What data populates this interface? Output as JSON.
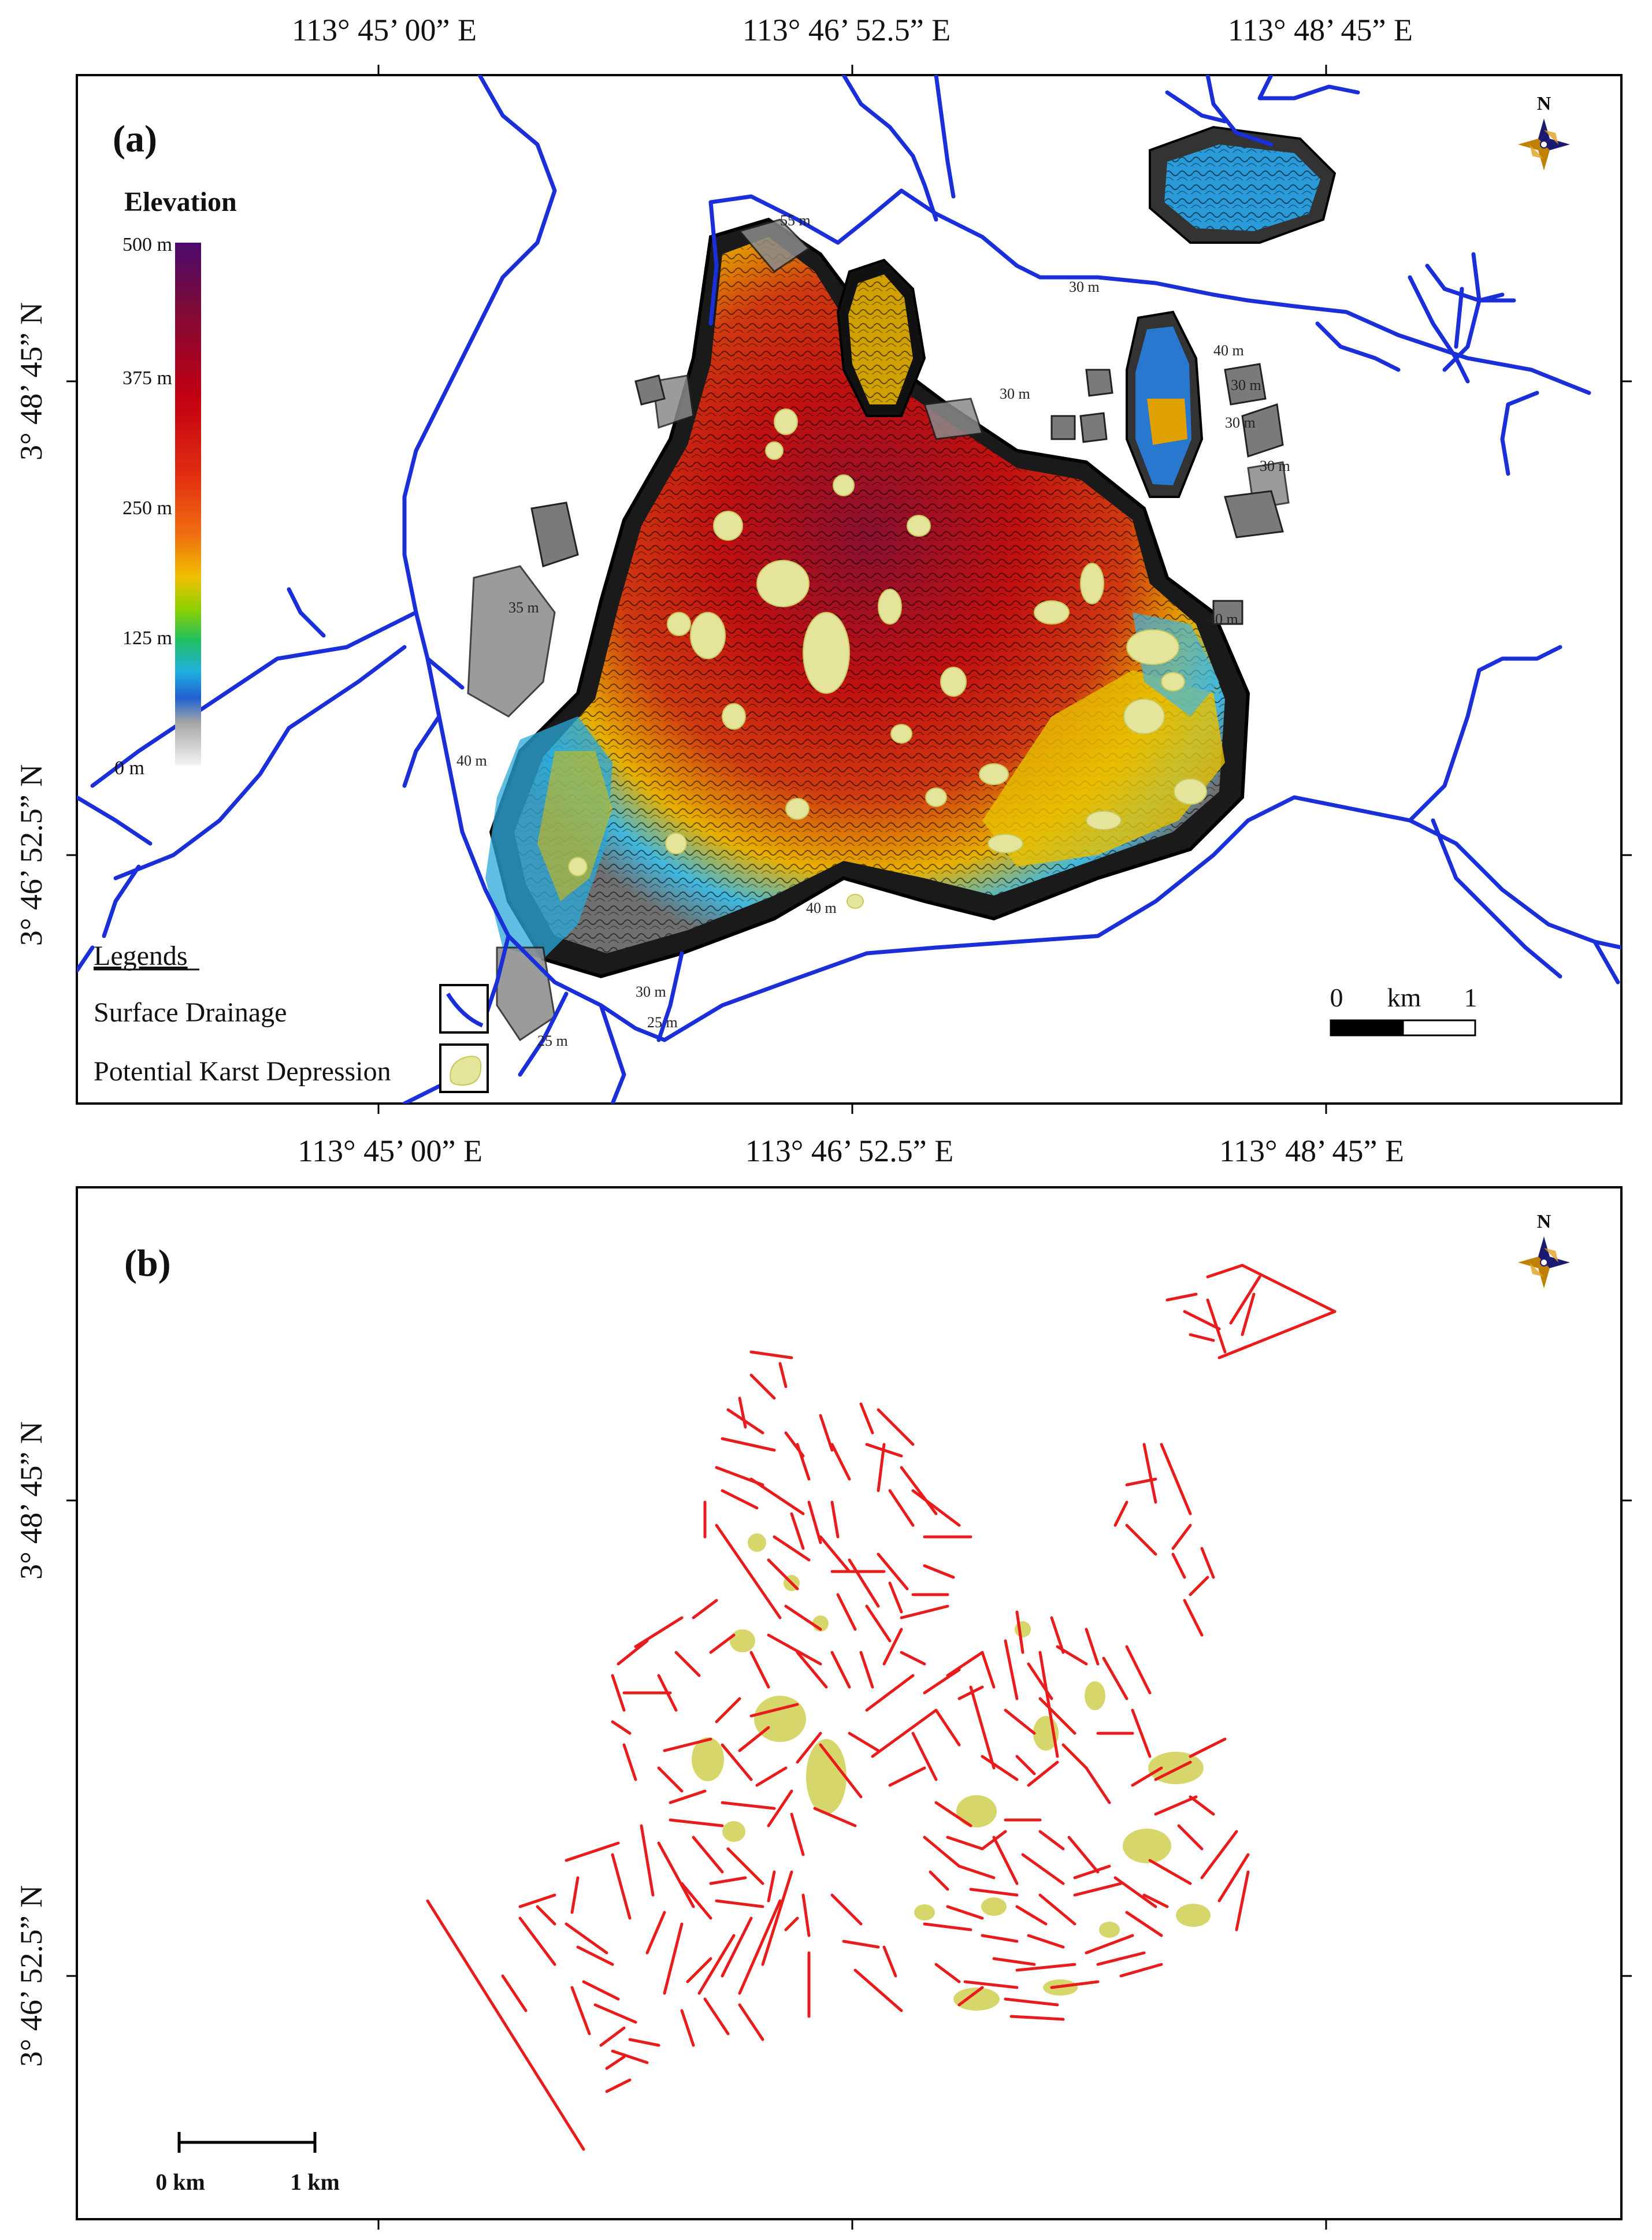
{
  "panel_a": {
    "label": "(a)",
    "top_longitude_labels": [
      "113° 45’ 00” E",
      "113° 46’ 52.5” E",
      "113° 48’ 45” E"
    ],
    "bottom_longitude_labels": [
      "113° 45’ 00” E",
      "113° 46’ 52.5” E",
      "113° 48’ 45” E"
    ],
    "latitude_labels": [
      "3° 48’ 45” N",
      "3° 46’ 52.5” N"
    ],
    "north_arrow": {
      "icon": "compass-rose-icon",
      "label": "N"
    },
    "elevation_legend": {
      "title": "Elevation",
      "ticks": [
        "500 m",
        "375 m",
        "250 m",
        "125 m",
        "0 m"
      ],
      "colors": [
        "#4b0a6e",
        "#7a0a3a",
        "#c40010",
        "#e23010",
        "#f07010",
        "#f0c000",
        "#8ed000",
        "#20c060",
        "#20b0e0",
        "#2060d0",
        "#c8c8c8",
        "#f4f4f4"
      ]
    },
    "legends": {
      "heading": "Legends",
      "items": [
        {
          "label": "Surface Drainage",
          "icon": "drainage-line-icon",
          "color": "#1a2fd8"
        },
        {
          "label": "Potential Karst Depression",
          "icon": "karst-depression-icon",
          "color": "#e4e49a"
        }
      ]
    },
    "scale_bar": {
      "label_0": "0",
      "unit": "km",
      "label_1": "1"
    },
    "contour_labels": [
      "55 m",
      "30 m",
      "40 m",
      "30 m",
      "30 m",
      "30 m",
      "35 m",
      "40 m",
      "30 m",
      "25 m",
      "40 m",
      "30 m",
      "25 m",
      "40 m"
    ]
  },
  "panel_b": {
    "label": "(b)",
    "bottom_longitude_labels": [
      "113° 45’ 00” E",
      "113° 46’ 52.5” E",
      "113° 48’ 45” E"
    ],
    "latitude_labels": [
      "3° 48’ 45” N",
      "3° 46’ 52.5” N"
    ],
    "north_arrow": {
      "icon": "compass-rose-icon",
      "label": "N"
    },
    "scale_bar": {
      "label_0": "0 km",
      "label_1": "1 km"
    },
    "lineament_color": "#e81c1c",
    "karst_color": "#d6d66a"
  }
}
